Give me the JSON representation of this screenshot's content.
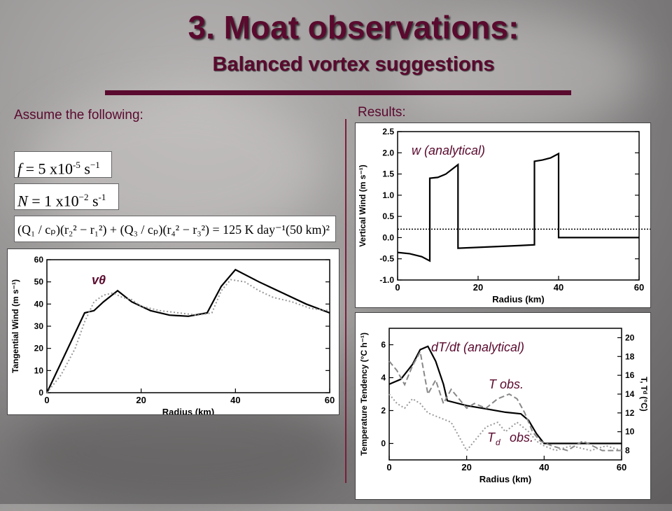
{
  "slide": {
    "title": "3. Moat observations:",
    "subtitle": "Balanced vortex suggestions",
    "assume_label": "Assume the following:",
    "results_label": "Results:"
  },
  "equations": {
    "f": {
      "lhs": "f",
      "coef": "5",
      "mant": "x10",
      "exp": "-5",
      "unit": "s",
      "unit_exp": "−1"
    },
    "N": {
      "lhs": "N",
      "coef": "1",
      "mant": "x10",
      "exp": "−2",
      "unit": "s",
      "unit_exp": "-1"
    },
    "Q": {
      "text": "(Q₁ / cₚ)(r₂² − r₁²) + (Q₃ / cₚ)(r₄² − r₃²) = 125 K day⁻¹(50 km)²"
    }
  },
  "chart_data": [
    {
      "type": "line",
      "id": "tangential-wind",
      "xlabel": "Radius (km)",
      "ylabel": "Tangential Wind (m s⁻¹)",
      "xlim": [
        0,
        60
      ],
      "ylim": [
        0,
        60
      ],
      "xticks": [
        0,
        20,
        40,
        60
      ],
      "yticks": [
        0,
        10,
        20,
        30,
        40,
        50,
        60
      ],
      "annotation": "vθ",
      "series": [
        {
          "style": "solid",
          "x": [
            0,
            8,
            10,
            12,
            15,
            18,
            22,
            26,
            30,
            34,
            37,
            40,
            45,
            50,
            55,
            60
          ],
          "y": [
            0,
            36,
            37,
            41,
            46,
            41,
            37,
            35,
            34.5,
            36,
            48,
            55.5,
            50,
            45,
            40,
            36
          ]
        },
        {
          "style": "dotted",
          "x": [
            0,
            3,
            6,
            8,
            10,
            12,
            14,
            16,
            18,
            20,
            24,
            28,
            32,
            35,
            37,
            39,
            42,
            45,
            48,
            52,
            56,
            60
          ],
          "y": [
            0,
            8,
            20,
            32,
            41,
            44,
            45,
            43,
            42,
            39,
            37,
            36,
            35,
            36,
            46,
            51,
            50,
            46,
            43,
            41,
            38,
            37
          ]
        }
      ]
    },
    {
      "type": "line",
      "id": "vertical-wind",
      "xlabel": "Radius (km)",
      "ylabel": "Vertical Wind (m s⁻¹)",
      "xlim": [
        0,
        60
      ],
      "ylim": [
        -1.0,
        2.5
      ],
      "xticks": [
        0,
        20,
        40,
        60
      ],
      "yticks": [
        -1.0,
        -0.5,
        0.0,
        0.5,
        1.0,
        1.5,
        2.0,
        2.5
      ],
      "annotation": "w (analytical)",
      "reference_line": 0.2,
      "series": [
        {
          "style": "solid",
          "x": [
            0,
            3,
            6,
            8,
            8,
            10,
            12,
            15,
            15,
            20,
            25,
            30,
            34,
            34,
            36,
            38,
            40,
            40,
            60
          ],
          "y": [
            -0.35,
            -0.38,
            -0.45,
            -0.55,
            1.4,
            1.42,
            1.5,
            1.72,
            -0.25,
            -0.23,
            -0.21,
            -0.19,
            -0.17,
            1.8,
            1.83,
            1.88,
            1.98,
            0.0,
            0.0
          ]
        }
      ]
    },
    {
      "type": "line",
      "id": "temperature-tendency",
      "xlabel": "Radius (km)",
      "ylabel": "Temperature Tendency (°C h⁻¹)",
      "y2label": "T, Tᵈ (°C)",
      "xlim": [
        0,
        60
      ],
      "ylim": [
        -1,
        7
      ],
      "y2lim": [
        7,
        21
      ],
      "xticks": [
        0,
        20,
        40,
        60
      ],
      "yticks": [
        0,
        2,
        4,
        6
      ],
      "y2ticks": [
        8,
        10,
        12,
        14,
        16,
        18,
        20
      ],
      "annotations": [
        "dT/dt (analytical)",
        "T obs.",
        "T",
        "d",
        "obs."
      ],
      "series": [
        {
          "style": "solid",
          "axis": "left",
          "x": [
            0,
            3,
            6,
            8,
            10,
            12,
            14,
            15,
            20,
            25,
            30,
            34,
            36,
            38,
            40,
            45,
            50,
            60
          ],
          "y": [
            3.6,
            3.9,
            4.8,
            5.7,
            5.9,
            5.0,
            3.6,
            2.6,
            2.3,
            2.1,
            1.9,
            1.8,
            1.4,
            0.6,
            0.0,
            0.0,
            0.0,
            0.0
          ]
        },
        {
          "style": "dashed",
          "axis": "right",
          "x": [
            0,
            2,
            4,
            6,
            8,
            10,
            12,
            14,
            16,
            18,
            20,
            22,
            25,
            28,
            31,
            33,
            35,
            37,
            39,
            42,
            46,
            50,
            55,
            60
          ],
          "y": [
            17.5,
            16.5,
            15.0,
            17.0,
            18.5,
            14.0,
            15.5,
            13.0,
            14.5,
            13.5,
            12.5,
            13.0,
            12.5,
            13.5,
            14.0,
            13.5,
            12.0,
            10.0,
            9.0,
            8.5,
            8.0,
            9.0,
            8.0,
            8.0
          ]
        },
        {
          "style": "dotted",
          "axis": "right",
          "x": [
            0,
            2,
            4,
            6,
            8,
            10,
            13,
            16,
            18,
            20,
            22,
            25,
            28,
            30,
            33,
            36,
            38,
            40,
            43,
            47,
            52,
            56,
            60
          ],
          "y": [
            14.0,
            13.0,
            12.5,
            13.5,
            13.0,
            12.0,
            11.5,
            11.0,
            9.5,
            8.0,
            9.0,
            10.5,
            11.0,
            10.0,
            11.0,
            10.0,
            9.0,
            8.5,
            8.0,
            8.5,
            8.0,
            8.5,
            8.0
          ]
        }
      ]
    }
  ]
}
